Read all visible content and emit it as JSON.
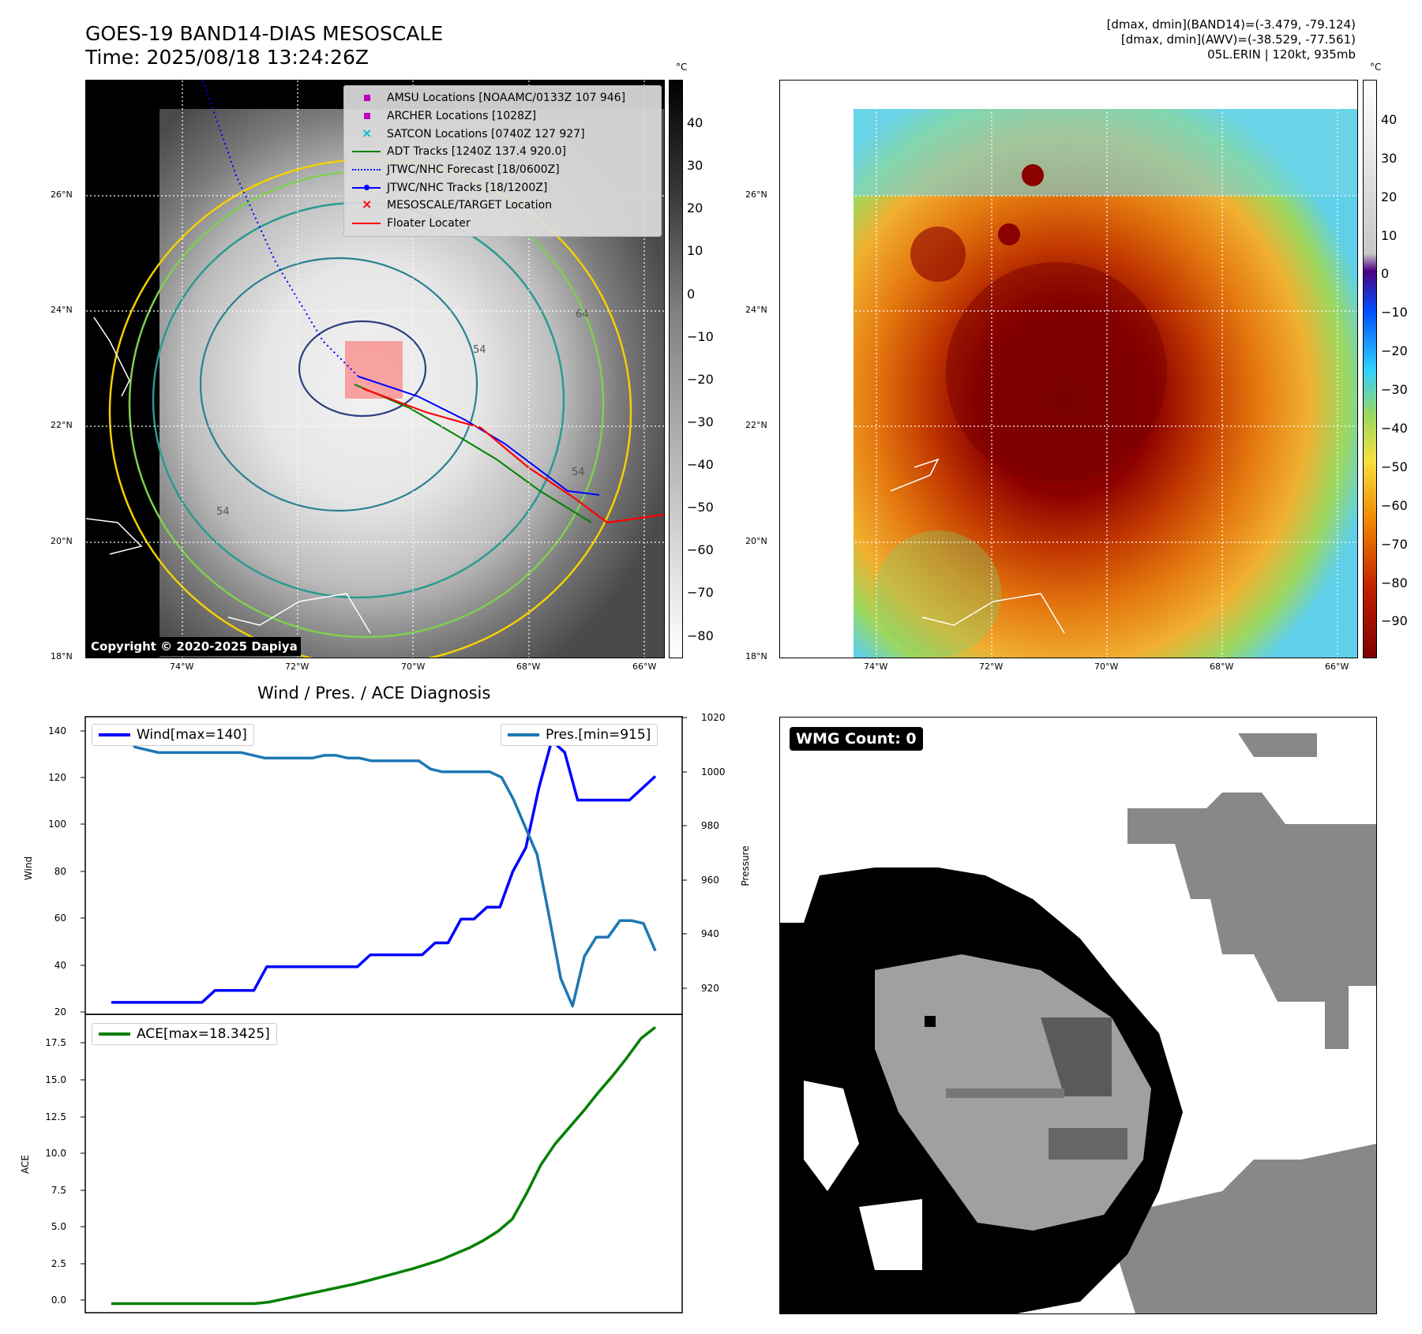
{
  "header": {
    "title_line1": "GOES-19 BAND14-DIAS MESOSCALE",
    "title_line2": "Time: 2025/08/18 13:24:26Z",
    "dmax_band14": "[dmax, dmin](BAND14)=(-3.479, -79.124)",
    "dmax_awv": "[dmax, dmin](AWV)=(-38.529, -77.561)",
    "storm": "05L.ERIN | 120kt, 935mb"
  },
  "map_axes": {
    "lon_labels": [
      "74°W",
      "72°W",
      "70°W",
      "68°W",
      "66°W"
    ],
    "lat_labels": [
      "26°N",
      "24°N",
      "22°N",
      "20°N",
      "18°N"
    ]
  },
  "colorbar_left": {
    "unit": "°C",
    "ticks": [
      "40",
      "30",
      "20",
      "10",
      "0",
      "−10",
      "−20",
      "−30",
      "−40",
      "−50",
      "−60",
      "−70",
      "−80"
    ]
  },
  "colorbar_right": {
    "unit": "°C",
    "ticks": [
      "40",
      "30",
      "20",
      "10",
      "0",
      "−10",
      "−20",
      "−30",
      "−40",
      "−50",
      "−60",
      "−70",
      "−80",
      "−90"
    ]
  },
  "legend": [
    {
      "label": "AMSU Locations [NOAAMC/0133Z 107 946]",
      "icon": "square-marker",
      "color": "#c000c0"
    },
    {
      "label": "ARCHER Locations [1028Z]",
      "icon": "square-marker",
      "color": "#c000c0"
    },
    {
      "label": "SATCON Locations [0740Z 127 927]",
      "icon": "x-marker",
      "color": "#00bcd4"
    },
    {
      "label": "ADT Tracks [1240Z 137.4 920.0]",
      "icon": "solid-line",
      "color": "#008000"
    },
    {
      "label": "JTWC/NHC Forecast [18/0600Z]",
      "icon": "dotted-line",
      "color": "#0000ff"
    },
    {
      "label": "JTWC/NHC Tracks [18/1200Z]",
      "icon": "dot-line",
      "color": "#0000ff"
    },
    {
      "label": "MESOSCALE/TARGET Location",
      "icon": "x-marker",
      "color": "#ff0000"
    },
    {
      "label": "Floater Locater",
      "icon": "solid-line",
      "color": "#ff0000"
    }
  ],
  "copyright": "Copyright © 2020-2025 Dapiya",
  "contour_labels": [
    "54",
    "64",
    "54",
    "54"
  ],
  "wind_panel": {
    "title": "Wind / Pres. / ACE Diagnosis",
    "ylabel_left": "Wind",
    "ylabel_right": "Pressure",
    "legend_wind": "Wind[max=140]",
    "legend_pres": "Pres.[min=915]",
    "wind_ticks": [
      "140",
      "120",
      "100",
      "80",
      "60",
      "40",
      "20"
    ],
    "pres_ticks": [
      "1020",
      "1000",
      "980",
      "960",
      "940",
      "920"
    ]
  },
  "ace_panel": {
    "ylabel": "ACE",
    "legend": "ACE[max=18.3425]",
    "ticks": [
      "17.5",
      "15.0",
      "12.5",
      "10.0",
      "7.5",
      "5.0",
      "2.5",
      "0.0"
    ]
  },
  "wmg_panel": {
    "label": "WMG Count: 0"
  },
  "chart_data": [
    {
      "type": "line",
      "title": "Wind / Pres. / ACE Diagnosis",
      "ylabel": "Wind",
      "ylim": [
        20,
        145
      ],
      "series": [
        {
          "name": "Wind[max=140]",
          "color": "#0000ff",
          "values": [
            25,
            25,
            25,
            25,
            25,
            25,
            25,
            25,
            30,
            30,
            30,
            30,
            40,
            40,
            40,
            40,
            40,
            40,
            40,
            40,
            45,
            45,
            45,
            45,
            45,
            50,
            50,
            60,
            60,
            65,
            65,
            80,
            90,
            115,
            135,
            130,
            110,
            110,
            110,
            110,
            110,
            115,
            120
          ]
        }
      ]
    },
    {
      "type": "line",
      "ylabel": "Pressure",
      "ylim": [
        912,
        1020
      ],
      "series": [
        {
          "name": "Pres.[min=915]",
          "color": "#1f77b4",
          "values": [
            1015,
            1015,
            1009,
            1008,
            1007,
            1007,
            1007,
            1007,
            1007,
            1007,
            1007,
            1007,
            1006,
            1005,
            1005,
            1005,
            1005,
            1005,
            1006,
            1006,
            1005,
            1005,
            1004,
            1004,
            1004,
            1004,
            1004,
            1001,
            1000,
            1000,
            1000,
            1000,
            1000,
            998,
            990,
            980,
            970,
            948,
            925,
            915,
            933,
            940,
            940,
            946,
            946,
            945,
            935
          ]
        }
      ]
    },
    {
      "type": "line",
      "ylabel": "ACE",
      "ylim": [
        -0.6,
        19.2
      ],
      "series": [
        {
          "name": "ACE[max=18.3425]",
          "color": "#008000",
          "values": [
            0,
            0,
            0,
            0,
            0,
            0,
            0,
            0,
            0,
            0,
            0,
            0.1,
            0.3,
            0.5,
            0.7,
            0.9,
            1.1,
            1.3,
            1.55,
            1.8,
            2.05,
            2.3,
            2.6,
            2.9,
            3.3,
            3.7,
            4.2,
            4.8,
            5.6,
            7.3,
            9.2,
            10.6,
            11.7,
            12.8,
            14.0,
            15.1,
            16.3,
            17.6,
            18.34
          ]
        }
      ]
    }
  ]
}
